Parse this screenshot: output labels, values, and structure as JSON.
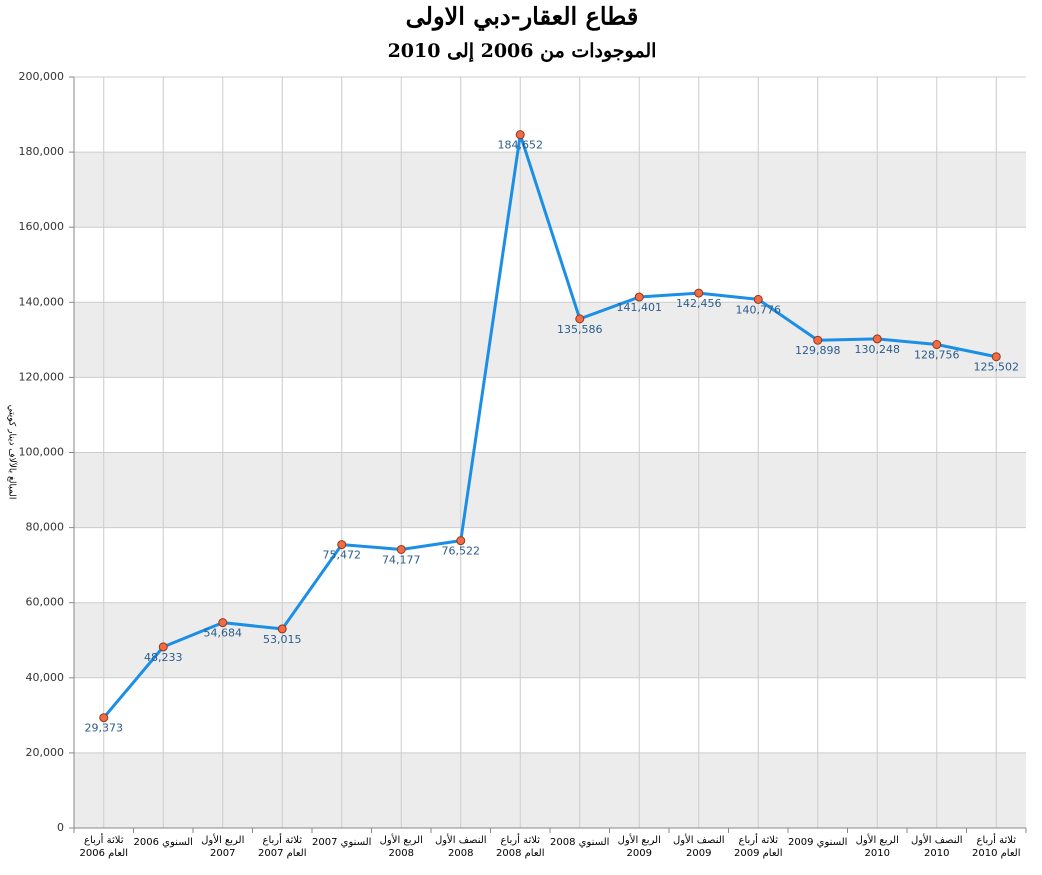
{
  "chart_data": {
    "type": "line",
    "title": "قطاع العقار-دبي الاولى",
    "subtitle": "الموجودات من 2006 إلى 2010",
    "y_label": "المبالغ بالآلاف دينار كويتي",
    "categories": [
      [
        "ثلاثة أرباع",
        "العام 2006"
      ],
      [
        "السنوي 2006"
      ],
      [
        "الربع الأول",
        "2007"
      ],
      [
        "ثلاثة أرباع",
        "العام 2007"
      ],
      [
        "السنوي 2007"
      ],
      [
        "الربع الأول",
        "2008"
      ],
      [
        "النصف الأول",
        "2008"
      ],
      [
        "ثلاثة أرباع",
        "العام 2008"
      ],
      [
        "السنوي 2008"
      ],
      [
        "الربع الأول",
        "2009"
      ],
      [
        "النصف الأول",
        "2009"
      ],
      [
        "ثلاثة أرباع",
        "العام 2009"
      ],
      [
        "السنوي 2009"
      ],
      [
        "الربع الأول",
        "2010"
      ],
      [
        "النصف الأول",
        "2010"
      ],
      [
        "ثلاثة أرباع",
        "العام 2010"
      ]
    ],
    "values": [
      29373,
      48233,
      54684,
      53015,
      75472,
      74177,
      76522,
      184652,
      135586,
      141401,
      142456,
      140776,
      129898,
      130248,
      128756,
      125502
    ],
    "value_labels": [
      "29,373",
      "48,233",
      "54,684",
      "53,015",
      "75,472",
      "74,177",
      "76,522",
      "184,652",
      "135,586",
      "141,401",
      "142,456",
      "140,776",
      "129,898",
      "130,248",
      "128,756",
      "125,502"
    ],
    "color": "#1b8fe6",
    "marker_color": "#f26b43",
    "ylim": [
      0,
      200000
    ],
    "yticks": [
      0,
      {
        "value": 20000,
        "label": "20,000"
      },
      {
        "value": 40000,
        "label": "40,000"
      },
      {
        "value": 60000,
        "label": "60,000"
      },
      {
        "value": 80000,
        "label": "80,000"
      },
      {
        "value": 100000,
        "label": "100,000"
      },
      {
        "value": 120000,
        "label": "120,000"
      },
      {
        "value": 140000,
        "label": "140,000"
      },
      {
        "value": 160000,
        "label": "160,000"
      },
      {
        "value": 180000,
        "label": "180,000"
      },
      {
        "value": 200000,
        "label": "200,000"
      }
    ],
    "grid": true,
    "band_color": "#ececec"
  }
}
